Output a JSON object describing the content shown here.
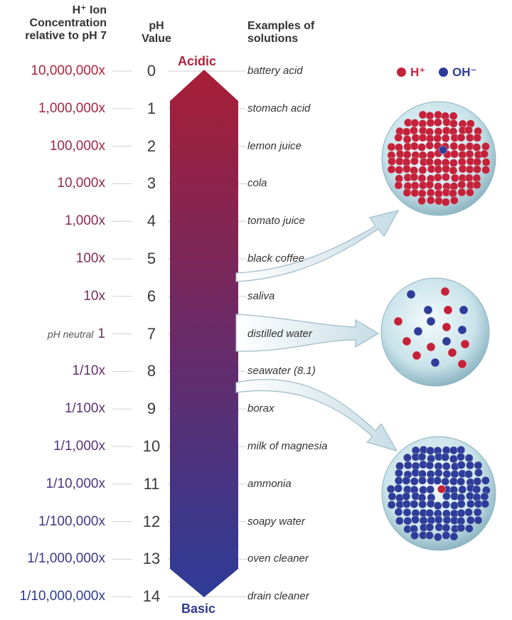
{
  "headers": {
    "concentration_line1": "H⁺ Ion",
    "concentration_line2": "Concentration",
    "concentration_line3": "relative to pH 7",
    "ph_line1": "pH",
    "ph_line2": "Value",
    "examples_line1": "Examples of",
    "examples_line2": "solutions"
  },
  "acidic_label": "Acidic",
  "basic_label": "Basic",
  "neutral_prefix": "pH neutral",
  "legend": {
    "h_label": "H⁺",
    "oh_label": "OH⁻",
    "h_color": "#c4223a",
    "oh_color": "#2e3d99"
  },
  "rows": [
    {
      "ph": "0",
      "concentration": "10,000,000x",
      "example": "battery acid"
    },
    {
      "ph": "1",
      "concentration": "1,000,000x",
      "example": "stomach acid"
    },
    {
      "ph": "2",
      "concentration": "100,000x",
      "example": "lemon juice"
    },
    {
      "ph": "3",
      "concentration": "10,000x",
      "example": "cola"
    },
    {
      "ph": "4",
      "concentration": "1,000x",
      "example": "tomato juice"
    },
    {
      "ph": "5",
      "concentration": "100x",
      "example": "black coffee"
    },
    {
      "ph": "6",
      "concentration": "10x",
      "example": "saliva"
    },
    {
      "ph": "7",
      "concentration": "1",
      "example": "distilled water"
    },
    {
      "ph": "8",
      "concentration": "1/10x",
      "example": "seawater (8.1)"
    },
    {
      "ph": "9",
      "concentration": "1/100x",
      "example": "borax"
    },
    {
      "ph": "10",
      "concentration": "1/1,000x",
      "example": "milk of magnesia"
    },
    {
      "ph": "11",
      "concentration": "1/10,000x",
      "example": "ammonia"
    },
    {
      "ph": "12",
      "concentration": "1/100,000x",
      "example": "soapy water"
    },
    {
      "ph": "13",
      "concentration": "1/1,000,000x",
      "example": "oven cleaner"
    },
    {
      "ph": "14",
      "concentration": "1/10,000,000x",
      "example": "drain cleaner"
    }
  ],
  "colors": {
    "acid": "#b0233a",
    "base": "#2e3a8f",
    "scale_top": "#a81e36",
    "scale_bottom": "#2d3c98"
  }
}
